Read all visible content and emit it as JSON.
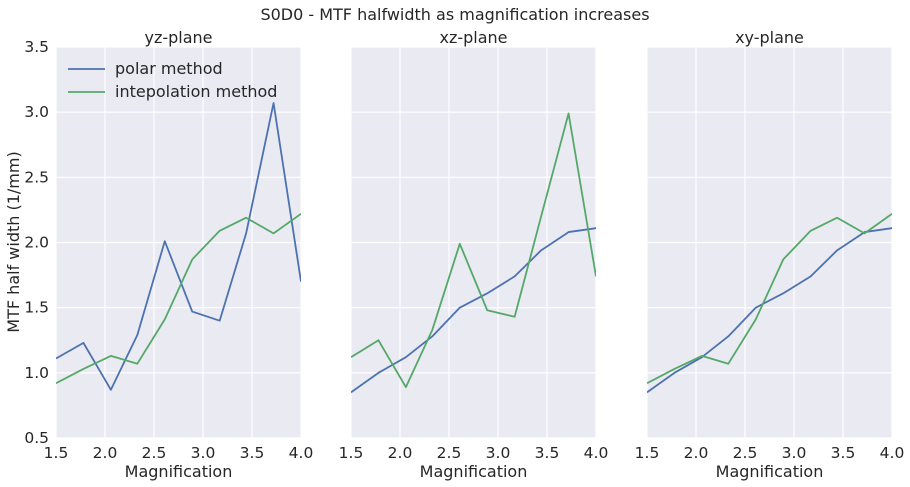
{
  "suptitle": "S0D0 - MTF halfwidth as magnification increases",
  "colors": {
    "polar": "#4c72b0",
    "interp": "#55a868",
    "background": "#eaeaf2",
    "grid": "#ffffff"
  },
  "legend": {
    "placement": "top-left",
    "entries": [
      "polar method",
      "intepolation method"
    ]
  },
  "chart_data": [
    {
      "type": "line",
      "title": "yz-plane",
      "xlabel": "Magnification",
      "ylabel": "MTF half width (1/mm)",
      "xlim": [
        1.5,
        4.0
      ],
      "ylim": [
        0.5,
        3.5
      ],
      "x_ticks": [
        "1.5",
        "2.0",
        "2.5",
        "3.0",
        "3.5",
        "4.0"
      ],
      "y_ticks": [
        "0.5",
        "1.0",
        "1.5",
        "2.0",
        "2.5",
        "3.0",
        "3.5"
      ],
      "grid": true,
      "x": [
        1.5,
        1.78,
        2.06,
        2.33,
        2.61,
        2.89,
        3.17,
        3.44,
        3.72,
        4.0
      ],
      "series": [
        {
          "name": "polar method",
          "values": [
            1.11,
            1.23,
            0.87,
            1.29,
            2.01,
            1.47,
            1.4,
            2.07,
            3.07,
            1.7
          ]
        },
        {
          "name": "intepolation method",
          "values": [
            0.92,
            1.03,
            1.13,
            1.07,
            1.41,
            1.87,
            2.09,
            2.19,
            2.07,
            2.22
          ]
        }
      ]
    },
    {
      "type": "line",
      "title": "xz-plane",
      "xlabel": "Magnification",
      "xlim": [
        1.5,
        4.0
      ],
      "ylim": [
        0.5,
        3.5
      ],
      "x_ticks": [
        "1.5",
        "2.0",
        "2.5",
        "3.0",
        "3.5",
        "4.0"
      ],
      "grid": true,
      "x": [
        1.5,
        1.78,
        2.06,
        2.33,
        2.61,
        2.89,
        3.17,
        3.44,
        3.72,
        4.0
      ],
      "series": [
        {
          "name": "polar method",
          "values": [
            0.85,
            1.0,
            1.12,
            1.28,
            1.5,
            1.61,
            1.74,
            1.94,
            2.08,
            2.11
          ]
        },
        {
          "name": "intepolation method",
          "values": [
            1.12,
            1.25,
            0.89,
            1.33,
            1.99,
            1.48,
            1.43,
            2.2,
            2.99,
            1.74
          ]
        }
      ]
    },
    {
      "type": "line",
      "title": "xy-plane",
      "xlabel": "Magnification",
      "xlim": [
        1.5,
        4.0
      ],
      "ylim": [
        0.5,
        3.5
      ],
      "x_ticks": [
        "1.5",
        "2.0",
        "2.5",
        "3.0",
        "3.5",
        "4.0"
      ],
      "grid": true,
      "x": [
        1.5,
        1.78,
        2.06,
        2.33,
        2.61,
        2.89,
        3.17,
        3.44,
        3.72,
        4.0
      ],
      "series": [
        {
          "name": "polar method",
          "values": [
            0.85,
            1.0,
            1.12,
            1.28,
            1.5,
            1.61,
            1.74,
            1.94,
            2.08,
            2.11
          ]
        },
        {
          "name": "intepolation method",
          "values": [
            0.92,
            1.03,
            1.13,
            1.07,
            1.41,
            1.87,
            2.09,
            2.19,
            2.07,
            2.22
          ]
        }
      ]
    }
  ]
}
